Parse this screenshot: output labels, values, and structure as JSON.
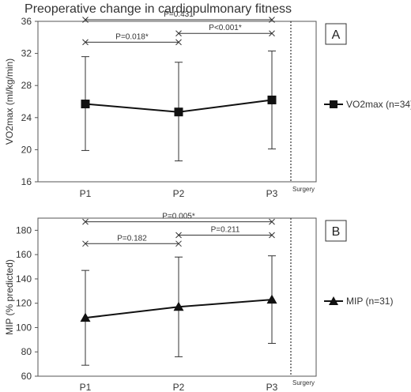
{
  "title": "Preoperative change in cardiopulmonary fitness",
  "chart_data": [
    {
      "type": "line",
      "panel_label": "A",
      "categories": [
        "P1",
        "P2",
        "P3"
      ],
      "ylabel": "VO2max (ml/kg/min)",
      "ylim": [
        16,
        36
      ],
      "yticks": [
        16,
        20,
        24,
        28,
        32,
        36
      ],
      "surgery_label": "Surgery",
      "series": [
        {
          "name": "VO2max (n=34)",
          "marker": "square",
          "values": [
            25.7,
            24.7,
            26.2
          ],
          "error_low": [
            19.9,
            18.6,
            20.1
          ],
          "error_high": [
            31.6,
            30.9,
            32.3
          ]
        }
      ],
      "comparisons": [
        {
          "from": "P1",
          "to": "P3",
          "label": "P=0.431",
          "level": 36.2
        },
        {
          "from": "P1",
          "to": "P2",
          "label": "P=0.018*",
          "level": 33.4
        },
        {
          "from": "P2",
          "to": "P3",
          "label": "P<0.001*",
          "level": 34.5
        }
      ],
      "legend_position": "right"
    },
    {
      "type": "line",
      "panel_label": "B",
      "categories": [
        "P1",
        "P2",
        "P3"
      ],
      "ylabel": "MIP (% predicted)",
      "ylim": [
        60,
        190
      ],
      "yticks": [
        60,
        80,
        100,
        120,
        140,
        160,
        180
      ],
      "surgery_label": "Surgery",
      "series": [
        {
          "name": "MIP (n=31)",
          "marker": "triangle",
          "values": [
            108,
            117,
            123
          ],
          "error_low": [
            69,
            76,
            87
          ],
          "error_high": [
            147,
            158,
            159
          ]
        }
      ],
      "comparisons": [
        {
          "from": "P1",
          "to": "P3",
          "label": "P=0.005*",
          "level": 187
        },
        {
          "from": "P1",
          "to": "P2",
          "label": "P=0.182",
          "level": 169
        },
        {
          "from": "P2",
          "to": "P3",
          "label": "P=0.211",
          "level": 176
        }
      ],
      "legend_position": "right"
    }
  ]
}
